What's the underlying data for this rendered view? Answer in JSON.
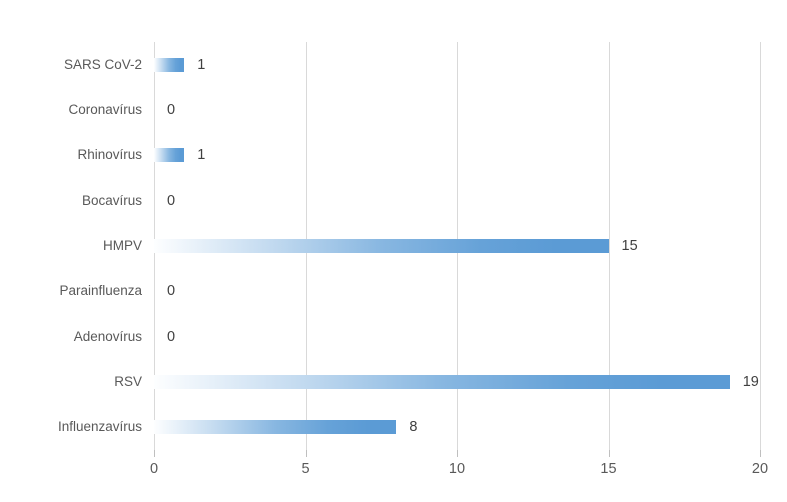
{
  "chart_data": {
    "type": "bar",
    "orientation": "horizontal",
    "title": "",
    "xlabel": "",
    "ylabel": "",
    "categories": [
      "SARS CoV-2",
      "Coronavírus",
      "Rhinovírus",
      "Bocavírus",
      "HMPV",
      "Parainfluenza",
      "Adenovírus",
      "RSV",
      "Influenzavírus"
    ],
    "values": [
      1,
      0,
      1,
      0,
      15,
      0,
      0,
      19,
      8
    ],
    "data_labels": [
      "1",
      "0",
      "1",
      "0",
      "15",
      "0",
      "0",
      "19",
      "8"
    ],
    "xlim": [
      0,
      20
    ],
    "x_ticks": [
      "0",
      "5",
      "10",
      "15",
      "20"
    ],
    "x_tick_values": [
      0,
      5,
      10,
      15,
      20
    ],
    "grid": true,
    "legend": false
  },
  "colors": {
    "background": "#ffffff",
    "bar_gradient_start": "#fdfeff",
    "bar_gradient_end": "#5b9bd5",
    "gridline": "#d9d9d9",
    "tick_mark": "#bfbfbf",
    "category_label": "#595959",
    "value_label": "#404040",
    "axis_tick_label": "#595959"
  }
}
